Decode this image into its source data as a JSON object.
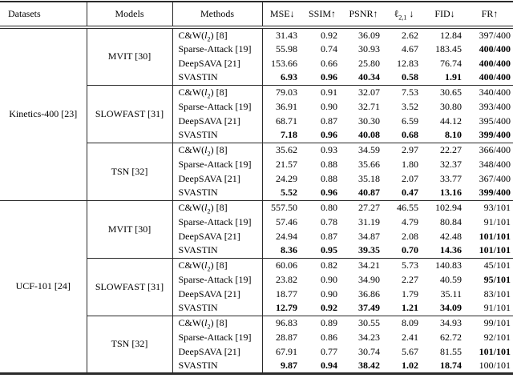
{
  "page": {
    "background": "#ffffff",
    "text_color": "#000000",
    "rule_color": "#2a2a2a"
  },
  "table": {
    "header": {
      "datasets": "Datasets",
      "models": "Models",
      "methods": "Methods",
      "metrics": [
        {
          "key": "mse",
          "segments": [
            {
              "t": "MSE↓"
            }
          ]
        },
        {
          "key": "ssim",
          "segments": [
            {
              "t": "SSIM↑"
            }
          ]
        },
        {
          "key": "psnr",
          "segments": [
            {
              "t": "PSNR↑"
            }
          ]
        },
        {
          "key": "l21",
          "segments": [
            {
              "t": "ℓ"
            },
            {
              "t": "2,1",
              "sub": true
            },
            {
              "t": " ↓"
            }
          ]
        },
        {
          "key": "fid",
          "segments": [
            {
              "t": "FID↓"
            }
          ]
        },
        {
          "key": "fr",
          "segments": [
            {
              "t": "FR↑"
            }
          ]
        }
      ]
    },
    "datasets": [
      {
        "label": "Kinetics-400 [23]",
        "models": [
          {
            "label": "MVIT [30]",
            "rows": [
              {
                "method": [
                  {
                    "t": "C&W("
                  },
                  {
                    "t": "l",
                    "italic": true
                  },
                  {
                    "t": "2",
                    "sub": true
                  },
                  {
                    "t": ") [8]"
                  }
                ],
                "values": [
                  "31.43",
                  "0.92",
                  "36.09",
                  "2.62",
                  "12.84",
                  "397/400"
                ],
                "bold": []
              },
              {
                "method": [
                  {
                    "t": "Sparse-Attack [19]"
                  }
                ],
                "values": [
                  "55.98",
                  "0.74",
                  "30.93",
                  "4.67",
                  "183.45",
                  "400/400"
                ],
                "bold": [
                  5
                ]
              },
              {
                "method": [
                  {
                    "t": "DeepSAVA [21]"
                  }
                ],
                "values": [
                  "153.66",
                  "0.66",
                  "25.80",
                  "12.83",
                  "76.74",
                  "400/400"
                ],
                "bold": [
                  5
                ]
              },
              {
                "method": [
                  {
                    "t": "SVASTIN"
                  }
                ],
                "values": [
                  "6.93",
                  "0.96",
                  "40.34",
                  "0.58",
                  "1.91",
                  "400/400"
                ],
                "bold": [
                  0,
                  1,
                  2,
                  3,
                  4,
                  5
                ]
              }
            ]
          },
          {
            "label": "SLOWFAST [31]",
            "rows": [
              {
                "method": [
                  {
                    "t": "C&W("
                  },
                  {
                    "t": "l",
                    "italic": true
                  },
                  {
                    "t": "2",
                    "sub": true
                  },
                  {
                    "t": ") [8]"
                  }
                ],
                "values": [
                  "79.03",
                  "0.91",
                  "32.07",
                  "7.53",
                  "30.65",
                  "340/400"
                ],
                "bold": []
              },
              {
                "method": [
                  {
                    "t": "Sparse-Attack [19]"
                  }
                ],
                "values": [
                  "36.91",
                  "0.90",
                  "32.71",
                  "3.52",
                  "30.80",
                  "393/400"
                ],
                "bold": []
              },
              {
                "method": [
                  {
                    "t": "DeepSAVA [21]"
                  }
                ],
                "values": [
                  "68.71",
                  "0.87",
                  "30.30",
                  "6.59",
                  "44.12",
                  "395/400"
                ],
                "bold": []
              },
              {
                "method": [
                  {
                    "t": "SVASTIN"
                  }
                ],
                "values": [
                  "7.18",
                  "0.96",
                  "40.08",
                  "0.68",
                  "8.10",
                  "399/400"
                ],
                "bold": [
                  0,
                  1,
                  2,
                  3,
                  4,
                  5
                ]
              }
            ]
          },
          {
            "label": "TSN [32]",
            "rows": [
              {
                "method": [
                  {
                    "t": "C&W("
                  },
                  {
                    "t": "l",
                    "italic": true
                  },
                  {
                    "t": "2",
                    "sub": true
                  },
                  {
                    "t": ") [8]"
                  }
                ],
                "values": [
                  "35.62",
                  "0.93",
                  "34.59",
                  "2.97",
                  "22.27",
                  "366/400"
                ],
                "bold": []
              },
              {
                "method": [
                  {
                    "t": "Sparse-Attack [19]"
                  }
                ],
                "values": [
                  "21.57",
                  "0.88",
                  "35.66",
                  "1.80",
                  "32.37",
                  "348/400"
                ],
                "bold": []
              },
              {
                "method": [
                  {
                    "t": "DeepSAVA [21]"
                  }
                ],
                "values": [
                  "24.29",
                  "0.88",
                  "35.18",
                  "2.07",
                  "33.77",
                  "367/400"
                ],
                "bold": []
              },
              {
                "method": [
                  {
                    "t": "SVASTIN"
                  }
                ],
                "values": [
                  "5.52",
                  "0.96",
                  "40.87",
                  "0.47",
                  "13.16",
                  "399/400"
                ],
                "bold": [
                  0,
                  1,
                  2,
                  3,
                  4,
                  5
                ]
              }
            ]
          }
        ]
      },
      {
        "label": "UCF-101 [24]",
        "models": [
          {
            "label": "MVIT [30]",
            "rows": [
              {
                "method": [
                  {
                    "t": "C&W("
                  },
                  {
                    "t": "l",
                    "italic": true
                  },
                  {
                    "t": "2",
                    "sub": true
                  },
                  {
                    "t": ") [8]"
                  }
                ],
                "values": [
                  "557.50",
                  "0.80",
                  "27.27",
                  "46.55",
                  "102.94",
                  "93/101"
                ],
                "bold": []
              },
              {
                "method": [
                  {
                    "t": "Sparse-Attack [19]"
                  }
                ],
                "values": [
                  "57.46",
                  "0.78",
                  "31.19",
                  "4.79",
                  "80.84",
                  "91/101"
                ],
                "bold": []
              },
              {
                "method": [
                  {
                    "t": "DeepSAVA [21]"
                  }
                ],
                "values": [
                  "24.94",
                  "0.87",
                  "34.87",
                  "2.08",
                  "42.48",
                  "101/101"
                ],
                "bold": [
                  5
                ]
              },
              {
                "method": [
                  {
                    "t": "SVASTIN"
                  }
                ],
                "values": [
                  "8.36",
                  "0.95",
                  "39.35",
                  "0.70",
                  "14.36",
                  "101/101"
                ],
                "bold": [
                  0,
                  1,
                  2,
                  3,
                  4,
                  5
                ]
              }
            ]
          },
          {
            "label": "SLOWFAST [31]",
            "rows": [
              {
                "method": [
                  {
                    "t": "C&W("
                  },
                  {
                    "t": "l",
                    "italic": true
                  },
                  {
                    "t": "2",
                    "sub": true
                  },
                  {
                    "t": ") [8]"
                  }
                ],
                "values": [
                  "60.06",
                  "0.82",
                  "34.21",
                  "5.73",
                  "140.83",
                  "45/101"
                ],
                "bold": []
              },
              {
                "method": [
                  {
                    "t": "Sparse-Attack [19]"
                  }
                ],
                "values": [
                  "23.82",
                  "0.90",
                  "34.90",
                  "2.27",
                  "40.59",
                  "95/101"
                ],
                "bold": [
                  5
                ]
              },
              {
                "method": [
                  {
                    "t": "DeepSAVA [21]"
                  }
                ],
                "values": [
                  "18.77",
                  "0.90",
                  "36.86",
                  "1.79",
                  "35.11",
                  "83/101"
                ],
                "bold": []
              },
              {
                "method": [
                  {
                    "t": "SVASTIN"
                  }
                ],
                "values": [
                  "12.79",
                  "0.92",
                  "37.49",
                  "1.21",
                  "34.09",
                  "91/101"
                ],
                "bold": [
                  0,
                  1,
                  2,
                  3,
                  4
                ]
              }
            ]
          },
          {
            "label": "TSN [32]",
            "rows": [
              {
                "method": [
                  {
                    "t": "C&W("
                  },
                  {
                    "t": "l",
                    "italic": true
                  },
                  {
                    "t": "2",
                    "sub": true
                  },
                  {
                    "t": ") [8]"
                  }
                ],
                "values": [
                  "96.83",
                  "0.89",
                  "30.55",
                  "8.09",
                  "34.93",
                  "99/101"
                ],
                "bold": []
              },
              {
                "method": [
                  {
                    "t": "Sparse-Attack [19]"
                  }
                ],
                "values": [
                  "28.87",
                  "0.86",
                  "34.23",
                  "2.41",
                  "62.72",
                  "92/101"
                ],
                "bold": []
              },
              {
                "method": [
                  {
                    "t": "DeepSAVA [21]"
                  }
                ],
                "values": [
                  "67.91",
                  "0.77",
                  "30.74",
                  "5.67",
                  "81.55",
                  "101/101"
                ],
                "bold": [
                  5
                ]
              },
              {
                "method": [
                  {
                    "t": "SVASTIN"
                  }
                ],
                "values": [
                  "9.87",
                  "0.94",
                  "38.42",
                  "1.02",
                  "18.74",
                  "100/101"
                ],
                "bold": [
                  0,
                  1,
                  2,
                  3,
                  4
                ]
              }
            ]
          }
        ]
      }
    ]
  }
}
